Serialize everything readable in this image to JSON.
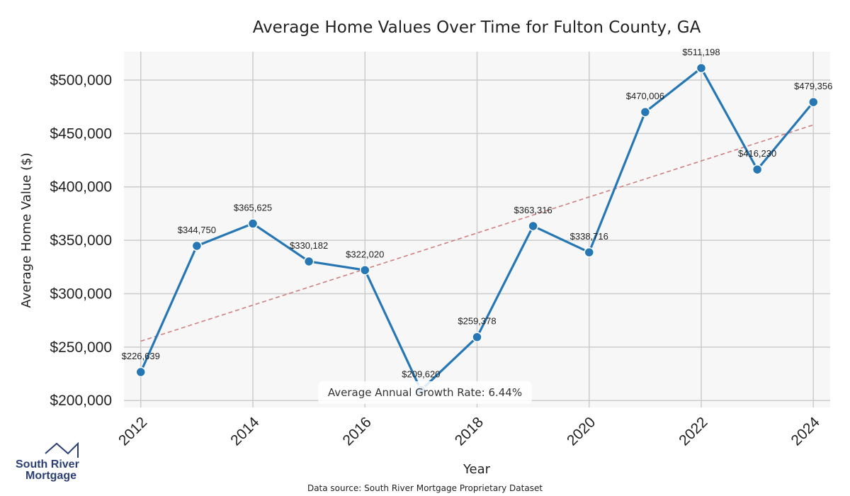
{
  "chart_data": {
    "type": "line",
    "title": "Average Home Values Over Time for Fulton County, GA",
    "xlabel": "Year",
    "ylabel": "Average Home Value ($)",
    "x": [
      2012,
      2013,
      2014,
      2015,
      2016,
      2017,
      2018,
      2019,
      2020,
      2021,
      2022,
      2023,
      2024
    ],
    "values": [
      226639,
      344750,
      365625,
      330182,
      322020,
      209620,
      259378,
      363316,
      338716,
      470006,
      511198,
      416230,
      479356
    ],
    "data_labels": [
      "$226,639",
      "$344,750",
      "$365,625",
      "$330,182",
      "$322,020",
      "$209,620",
      "$259,378",
      "$363,316",
      "$338,716",
      "$470,006",
      "$511,198",
      "$416,230",
      "$479,356"
    ],
    "xticks": [
      "2012",
      "2014",
      "2016",
      "2018",
      "2020",
      "2022",
      "2024"
    ],
    "yticks": [
      "$200,000",
      "$250,000",
      "$300,000",
      "$350,000",
      "$400,000",
      "$450,000",
      "$500,000"
    ],
    "ytick_values": [
      200000,
      250000,
      300000,
      350000,
      400000,
      450000,
      500000
    ],
    "xlim": [
      2011.7,
      2024.3
    ],
    "ylim": [
      193500,
      526500
    ],
    "trend_line": [
      255500,
      458000
    ],
    "grid": true,
    "annotation": "Average Annual Growth Rate: 6.44%",
    "source": "Data source: South River Mortgage Proprietary Dataset",
    "colors": {
      "line": "#2677b4",
      "trend": "#d07f7f",
      "plot_bg": "#f7f7f7",
      "grid": "#cccccc",
      "logo": "#2b3f73"
    }
  },
  "logo": {
    "line1": "South River",
    "line2": "Mortgage",
    "icon": "house-roof-icon"
  }
}
